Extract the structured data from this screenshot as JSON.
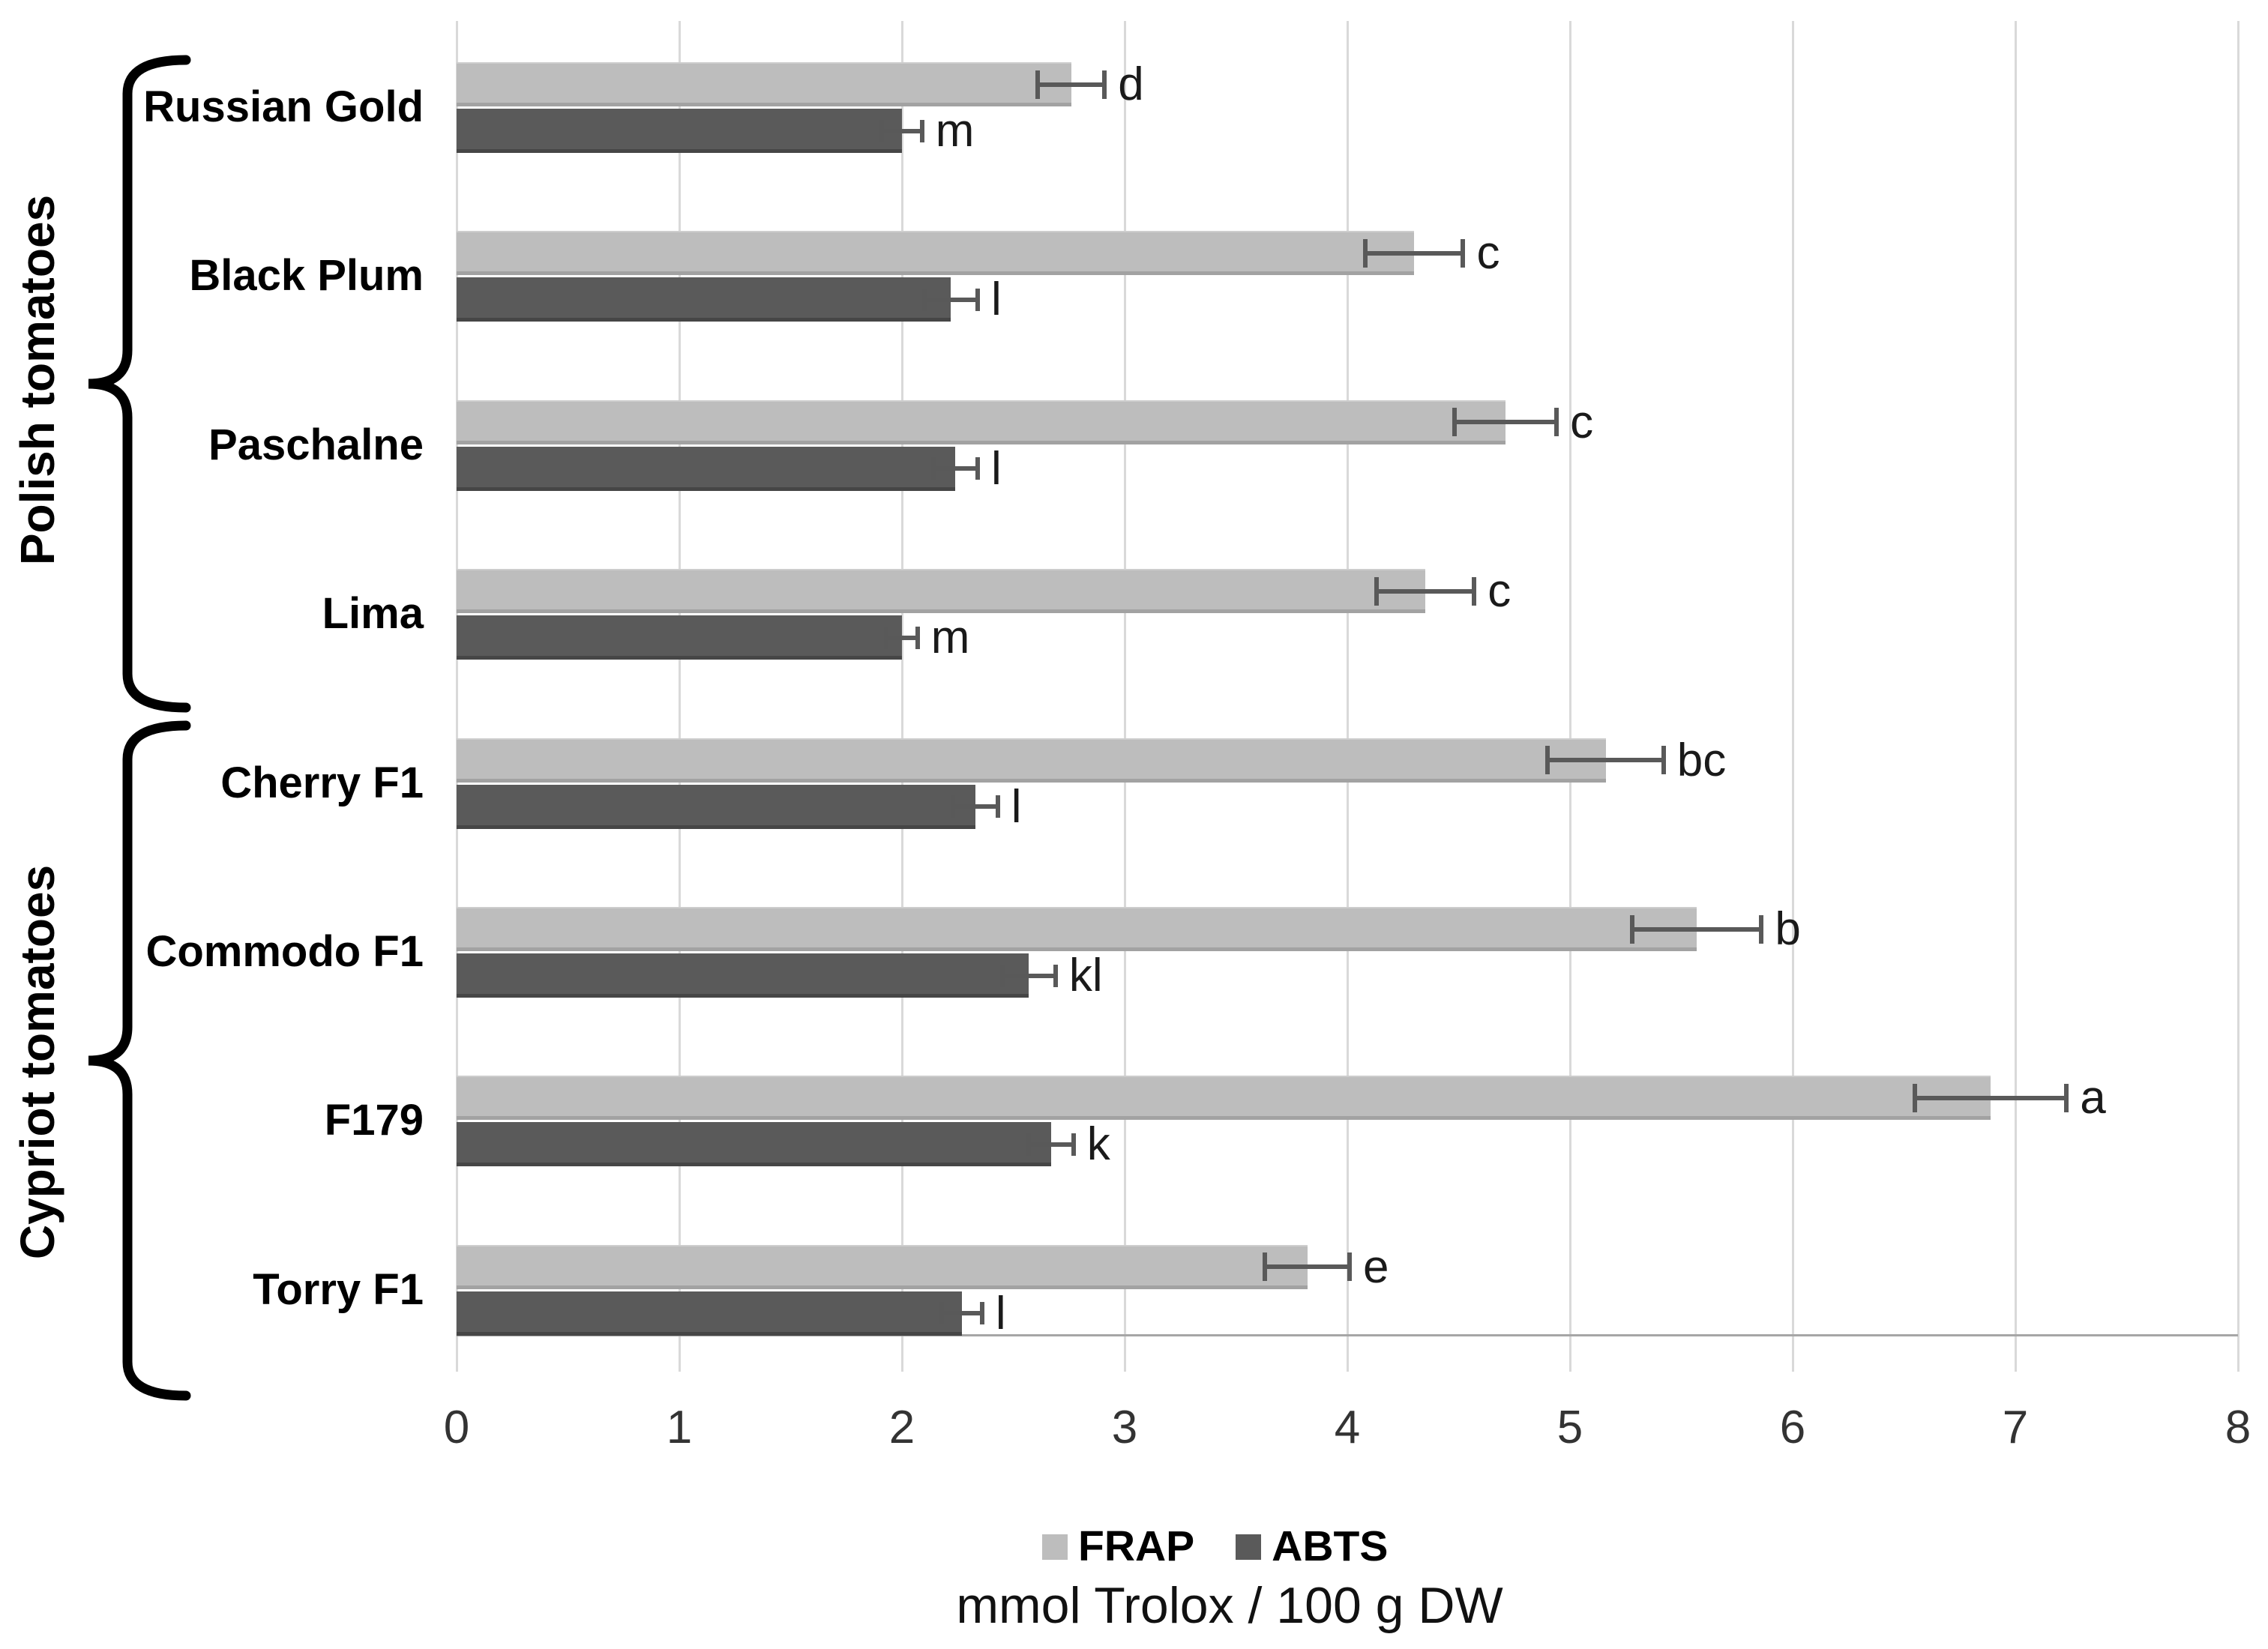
{
  "chart_data": {
    "type": "bar",
    "orientation": "horizontal",
    "title": "",
    "xlabel": "mmol Trolox / 100 g DW",
    "ylabel": "",
    "xlim": [
      0,
      8
    ],
    "xticks": [
      "0",
      "1",
      "2",
      "3",
      "4",
      "5",
      "6",
      "7",
      "8"
    ],
    "grid": "vertical",
    "legend": {
      "position": "bottom",
      "entries": [
        "FRAP",
        "ABTS"
      ]
    },
    "groups": [
      {
        "label": "Polish tomatoes",
        "categories": [
          "Russian Gold",
          "Black Plum",
          "Paschalne",
          "Lima"
        ]
      },
      {
        "label": "Cypriot tomatoes",
        "categories": [
          "Cherry F1",
          "Commodo F1",
          "F179",
          "Torry F1"
        ]
      }
    ],
    "categories": [
      "Russian Gold",
      "Black Plum",
      "Paschalne",
      "Lima",
      "Cherry F1",
      "Commodo F1",
      "F179",
      "Torry F1"
    ],
    "series": [
      {
        "name": "FRAP",
        "color": "#bdbdbd",
        "values": [
          2.76,
          4.3,
          4.71,
          4.35,
          5.16,
          5.57,
          6.89,
          3.82
        ],
        "errors": [
          0.15,
          0.22,
          0.23,
          0.22,
          0.26,
          0.29,
          0.34,
          0.19
        ],
        "sig_letters": [
          "d",
          "c",
          "c",
          "c",
          "bc",
          "b",
          "a",
          "e"
        ]
      },
      {
        "name": "ABTS",
        "color": "#5a5a5a",
        "values": [
          2.0,
          2.22,
          2.24,
          2.0,
          2.33,
          2.57,
          2.67,
          2.27
        ],
        "errors": [
          0.09,
          0.12,
          0.1,
          0.07,
          0.1,
          0.12,
          0.1,
          0.09
        ],
        "sig_letters": [
          "m",
          "l",
          "l",
          "m",
          "l",
          "kl",
          "k",
          "l"
        ]
      }
    ],
    "colors": {
      "gridline": "#d9d9d9",
      "axis_line": "#a6a6a6",
      "error_bar": "#595959",
      "tick_label": "#333333",
      "text": "#000000",
      "background": "#ffffff"
    }
  }
}
